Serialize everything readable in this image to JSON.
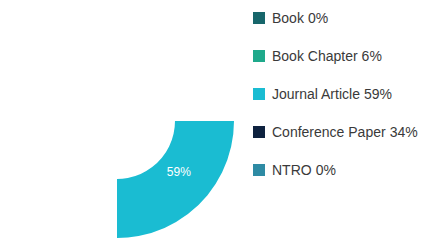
{
  "chart_data": {
    "type": "donut",
    "categories": [
      "Book",
      "Book Chapter",
      "Journal Article",
      "Conference Paper",
      "NTRO"
    ],
    "values": [
      0,
      6,
      59,
      34,
      0
    ],
    "value_labels": [
      "0%",
      "6%",
      "59%",
      "34%",
      "0%"
    ],
    "colors": [
      "#17666b",
      "#1fa98b",
      "#1abcd2",
      "#0e223f",
      "#2e8ba4"
    ],
    "data_labels": true,
    "legend": "right"
  }
}
